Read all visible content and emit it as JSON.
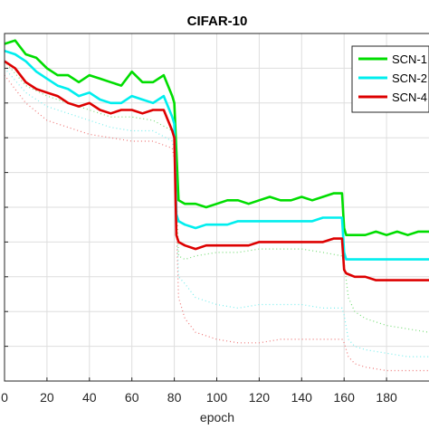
{
  "chart_data": {
    "type": "line",
    "title": "CIFAR-10",
    "xlabel": "epoch",
    "ylabel": "",
    "xlim": [
      0,
      200
    ],
    "ylim": [
      0,
      100
    ],
    "xticks": [
      0,
      20,
      40,
      60,
      80,
      100,
      120,
      140,
      160,
      180
    ],
    "xtick_labels": [
      "0",
      "20",
      "40",
      "60",
      "80",
      "100",
      "120",
      "140",
      "160",
      "180"
    ],
    "grid": true,
    "legend_position": "top-right",
    "series": [
      {
        "name": "SCN-1",
        "color": "#00dd00",
        "style": "solid",
        "x": [
          0,
          5,
          10,
          15,
          20,
          25,
          30,
          35,
          40,
          45,
          50,
          55,
          60,
          65,
          70,
          75,
          79,
          80,
          81,
          82,
          85,
          90,
          95,
          100,
          105,
          110,
          115,
          120,
          125,
          130,
          135,
          140,
          145,
          150,
          155,
          159,
          160,
          161,
          165,
          170,
          175,
          180,
          185,
          190,
          195,
          200
        ],
        "y": [
          97,
          98,
          94,
          93,
          90,
          88,
          88,
          86,
          88,
          87,
          86,
          85,
          89,
          86,
          86,
          88,
          82,
          80,
          66,
          52,
          51,
          51,
          50,
          51,
          52,
          52,
          51,
          52,
          53,
          52,
          52,
          53,
          52,
          53,
          54,
          54,
          44,
          42,
          42,
          42,
          43,
          42,
          43,
          42,
          43,
          43
        ]
      },
      {
        "name": "SCN-2",
        "color": "#00eeee",
        "style": "solid",
        "x": [
          0,
          5,
          10,
          15,
          20,
          25,
          30,
          35,
          40,
          45,
          50,
          55,
          60,
          65,
          70,
          75,
          79,
          80,
          81,
          82,
          85,
          90,
          95,
          100,
          105,
          110,
          115,
          120,
          125,
          130,
          135,
          140,
          145,
          150,
          155,
          159,
          160,
          161,
          165,
          170,
          175,
          180,
          185,
          190,
          195,
          200
        ],
        "y": [
          95,
          94,
          92,
          89,
          87,
          85,
          84,
          82,
          83,
          81,
          80,
          80,
          82,
          81,
          80,
          82,
          76,
          74,
          48,
          46,
          45,
          44,
          45,
          45,
          45,
          46,
          46,
          46,
          46,
          46,
          46,
          46,
          46,
          47,
          47,
          47,
          37,
          35,
          35,
          35,
          35,
          35,
          35,
          35,
          35,
          35
        ]
      },
      {
        "name": "SCN-4",
        "color": "#dd0000",
        "style": "solid",
        "x": [
          0,
          5,
          10,
          15,
          20,
          25,
          30,
          35,
          40,
          45,
          50,
          55,
          60,
          65,
          70,
          75,
          79,
          80,
          81,
          82,
          85,
          90,
          95,
          100,
          105,
          110,
          115,
          120,
          125,
          130,
          135,
          140,
          145,
          150,
          155,
          159,
          160,
          161,
          165,
          170,
          175,
          180,
          185,
          190,
          195,
          200
        ],
        "y": [
          92,
          90,
          86,
          84,
          83,
          82,
          80,
          79,
          80,
          78,
          77,
          78,
          78,
          77,
          78,
          78,
          72,
          70,
          42,
          40,
          39,
          38,
          39,
          39,
          39,
          39,
          39,
          40,
          40,
          40,
          40,
          40,
          40,
          40,
          41,
          41,
          32,
          31,
          30,
          30,
          29,
          29,
          29,
          29,
          29,
          29
        ]
      },
      {
        "color": "#77dd77",
        "style": "dotted",
        "x": [
          0,
          10,
          20,
          30,
          40,
          50,
          60,
          70,
          79,
          80,
          82,
          85,
          90,
          100,
          110,
          120,
          130,
          140,
          150,
          159,
          160,
          162,
          165,
          170,
          180,
          190,
          200
        ],
        "y": [
          92,
          85,
          82,
          80,
          78,
          76,
          76,
          75,
          72,
          70,
          36,
          35,
          36,
          37,
          37,
          38,
          38,
          38,
          37,
          36,
          34,
          24,
          20,
          18,
          16,
          15,
          14
        ]
      },
      {
        "color": "#77eeee",
        "style": "dotted",
        "x": [
          0,
          10,
          20,
          30,
          40,
          50,
          60,
          70,
          79,
          80,
          82,
          85,
          90,
          100,
          110,
          120,
          130,
          140,
          150,
          159,
          160,
          162,
          165,
          170,
          180,
          190,
          200
        ],
        "y": [
          90,
          83,
          79,
          77,
          75,
          73,
          72,
          72,
          69,
          66,
          30,
          28,
          24,
          22,
          21,
          22,
          22,
          22,
          21,
          21,
          19,
          12,
          10,
          9,
          8,
          7,
          7
        ]
      },
      {
        "color": "#ee7777",
        "style": "dotted",
        "x": [
          0,
          10,
          20,
          30,
          40,
          50,
          60,
          70,
          79,
          80,
          82,
          85,
          90,
          100,
          110,
          120,
          130,
          140,
          150,
          159,
          160,
          162,
          165,
          170,
          180,
          190,
          200
        ],
        "y": [
          88,
          80,
          75,
          73,
          71,
          70,
          69,
          69,
          67,
          64,
          24,
          18,
          14,
          12,
          11,
          11,
          12,
          12,
          12,
          12,
          11,
          7,
          5,
          4,
          3,
          3,
          3
        ]
      }
    ]
  }
}
